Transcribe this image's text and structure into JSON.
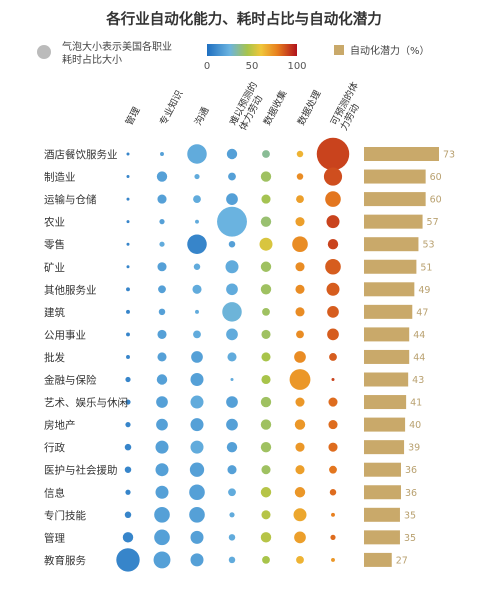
{
  "chart_data": {
    "type": "bubble-matrix-with-bars",
    "title": "各行业自动化能力、耗时占比与自动化潜力",
    "legend": {
      "bubble_note": "气泡大小表示美国各职业耗时占比大小",
      "color_scale": [
        0,
        50,
        100
      ],
      "bar_series": "自动化潜力（%）"
    },
    "colors": {
      "bar": "#c9a96a",
      "bar_value": "#b9a170",
      "legend_dot": "#bbbbbb"
    },
    "columns": [
      "管理",
      "专业知识",
      "沟通",
      "难以预测的体力劳动",
      "数据收集",
      "数据处理",
      "可预测的体力劳动"
    ],
    "rows": [
      {
        "name": "酒店餐饮服务业",
        "potential": 73,
        "cells": [
          [
            8,
            1
          ],
          [
            18,
            3
          ],
          [
            22,
            15
          ],
          [
            18,
            8
          ],
          [
            35,
            6
          ],
          [
            65,
            5
          ],
          [
            90,
            25
          ]
        ]
      },
      {
        "name": "制造业",
        "potential": 60,
        "cells": [
          [
            8,
            2
          ],
          [
            18,
            8
          ],
          [
            22,
            4
          ],
          [
            18,
            6
          ],
          [
            42,
            8
          ],
          [
            75,
            5
          ],
          [
            88,
            14
          ]
        ]
      },
      {
        "name": "运输与仓储",
        "potential": 60,
        "cells": [
          [
            8,
            2
          ],
          [
            18,
            7
          ],
          [
            22,
            6
          ],
          [
            18,
            9
          ],
          [
            44,
            7
          ],
          [
            70,
            6
          ],
          [
            80,
            12
          ]
        ]
      },
      {
        "name": "农业",
        "potential": 57,
        "cells": [
          [
            8,
            1
          ],
          [
            18,
            4
          ],
          [
            22,
            3
          ],
          [
            25,
            23
          ],
          [
            40,
            8
          ],
          [
            70,
            7
          ],
          [
            90,
            10
          ]
        ]
      },
      {
        "name": "零售",
        "potential": 53,
        "cells": [
          [
            8,
            1
          ],
          [
            22,
            4
          ],
          [
            8,
            15
          ],
          [
            18,
            5
          ],
          [
            55,
            10
          ],
          [
            75,
            12
          ],
          [
            90,
            8
          ]
        ]
      },
      {
        "name": "矿业",
        "potential": 51,
        "cells": [
          [
            8,
            2
          ],
          [
            18,
            7
          ],
          [
            22,
            5
          ],
          [
            22,
            10
          ],
          [
            42,
            8
          ],
          [
            75,
            7
          ],
          [
            85,
            12
          ]
        ]
      },
      {
        "name": "其他服务业",
        "potential": 49,
        "cells": [
          [
            8,
            3
          ],
          [
            18,
            6
          ],
          [
            22,
            7
          ],
          [
            22,
            9
          ],
          [
            42,
            8
          ],
          [
            75,
            7
          ],
          [
            85,
            10
          ]
        ]
      },
      {
        "name": "建筑",
        "potential": 47,
        "cells": [
          [
            8,
            3
          ],
          [
            18,
            5
          ],
          [
            22,
            3
          ],
          [
            26,
            15
          ],
          [
            42,
            6
          ],
          [
            75,
            7
          ],
          [
            85,
            9
          ]
        ]
      },
      {
        "name": "公用事业",
        "potential": 44,
        "cells": [
          [
            8,
            3
          ],
          [
            18,
            7
          ],
          [
            22,
            6
          ],
          [
            22,
            9
          ],
          [
            42,
            7
          ],
          [
            75,
            6
          ],
          [
            85,
            9
          ]
        ]
      },
      {
        "name": "批发",
        "potential": 44,
        "cells": [
          [
            8,
            3
          ],
          [
            18,
            7
          ],
          [
            18,
            9
          ],
          [
            22,
            7
          ],
          [
            45,
            7
          ],
          [
            75,
            9
          ],
          [
            85,
            6
          ]
        ]
      },
      {
        "name": "金融与保险",
        "potential": 43,
        "cells": [
          [
            8,
            4
          ],
          [
            18,
            8
          ],
          [
            18,
            10
          ],
          [
            22,
            1
          ],
          [
            45,
            7
          ],
          [
            72,
            16
          ],
          [
            90,
            2
          ]
        ]
      },
      {
        "name": "艺术、娱乐与休闲",
        "potential": 41,
        "cells": [
          [
            8,
            4
          ],
          [
            18,
            9
          ],
          [
            22,
            10
          ],
          [
            18,
            9
          ],
          [
            42,
            8
          ],
          [
            72,
            7
          ],
          [
            82,
            7
          ]
        ]
      },
      {
        "name": "房地产",
        "potential": 40,
        "cells": [
          [
            8,
            4
          ],
          [
            18,
            9
          ],
          [
            18,
            10
          ],
          [
            18,
            9
          ],
          [
            42,
            8
          ],
          [
            72,
            8
          ],
          [
            82,
            7
          ]
        ]
      },
      {
        "name": "行政",
        "potential": 39,
        "cells": [
          [
            8,
            5
          ],
          [
            18,
            10
          ],
          [
            22,
            10
          ],
          [
            18,
            8
          ],
          [
            42,
            8
          ],
          [
            72,
            7
          ],
          [
            82,
            7
          ]
        ]
      },
      {
        "name": "医护与社会援助",
        "potential": 36,
        "cells": [
          [
            8,
            5
          ],
          [
            18,
            10
          ],
          [
            18,
            11
          ],
          [
            18,
            7
          ],
          [
            42,
            7
          ],
          [
            70,
            7
          ],
          [
            80,
            6
          ]
        ]
      },
      {
        "name": "信息",
        "potential": 36,
        "cells": [
          [
            8,
            4
          ],
          [
            18,
            10
          ],
          [
            18,
            12
          ],
          [
            22,
            6
          ],
          [
            48,
            8
          ],
          [
            72,
            8
          ],
          [
            82,
            5
          ]
        ]
      },
      {
        "name": "专门技能",
        "potential": 35,
        "cells": [
          [
            8,
            5
          ],
          [
            18,
            12
          ],
          [
            18,
            12
          ],
          [
            22,
            4
          ],
          [
            48,
            7
          ],
          [
            68,
            10
          ],
          [
            78,
            3
          ]
        ]
      },
      {
        "name": "管理",
        "potential": 35,
        "cells": [
          [
            8,
            8
          ],
          [
            18,
            12
          ],
          [
            18,
            10
          ],
          [
            22,
            5
          ],
          [
            48,
            8
          ],
          [
            70,
            9
          ],
          [
            82,
            4
          ]
        ]
      },
      {
        "name": "教育服务",
        "potential": 27,
        "cells": [
          [
            8,
            18
          ],
          [
            18,
            13
          ],
          [
            18,
            10
          ],
          [
            22,
            5
          ],
          [
            45,
            6
          ],
          [
            65,
            6
          ],
          [
            72,
            3
          ]
        ]
      }
    ],
    "cell_format": "[automation_ability_0_100, time_share_size_units]"
  }
}
